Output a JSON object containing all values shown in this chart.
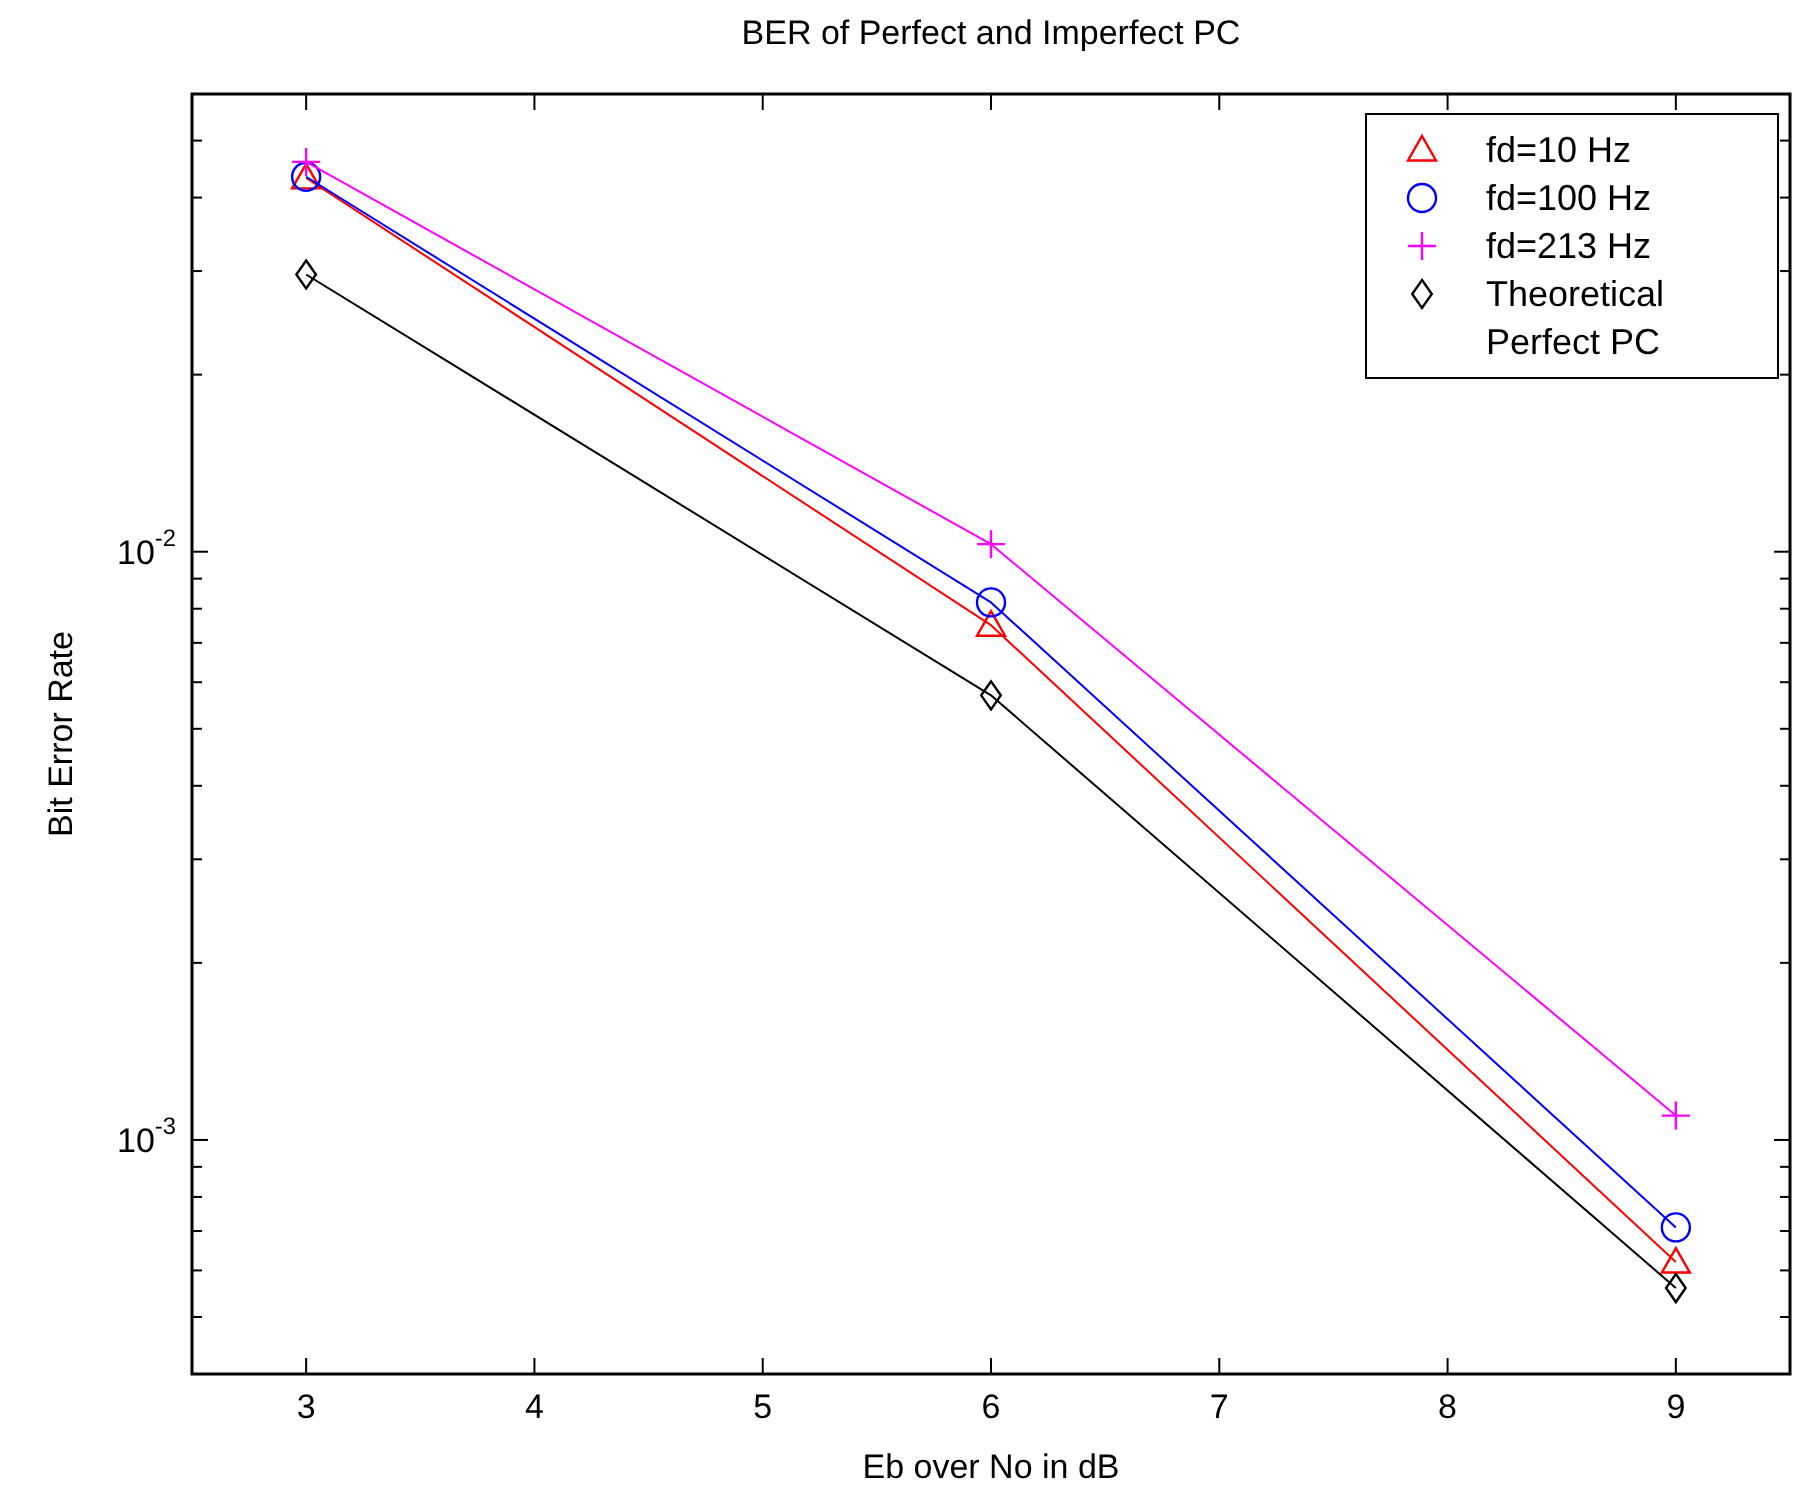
{
  "chart_data": {
    "type": "line",
    "title": "BER of Perfect and Imperfect PC",
    "xlabel": "Eb over No in dB",
    "ylabel": "Bit Error Rate",
    "x": [
      3,
      6,
      9
    ],
    "xlim": [
      2.5,
      9.5
    ],
    "xticks": [
      3,
      4,
      5,
      6,
      7,
      8,
      9
    ],
    "log": "y",
    "ylim": [
      0.0004,
      0.06
    ],
    "yticks": [
      {
        "value": 0.0004,
        "label": null
      },
      {
        "value": 0.0005,
        "label": null
      },
      {
        "value": 0.0006,
        "label": null
      },
      {
        "value": 0.0007,
        "label": null
      },
      {
        "value": 0.0008,
        "label": null
      },
      {
        "value": 0.0009,
        "label": null
      },
      {
        "value": 0.001,
        "label": "10$^{-3}$"
      },
      {
        "value": 0.002,
        "label": null
      },
      {
        "value": 0.003,
        "label": null
      },
      {
        "value": 0.004,
        "label": null
      },
      {
        "value": 0.005,
        "label": null
      },
      {
        "value": 0.006,
        "label": null
      },
      {
        "value": 0.007,
        "label": null
      },
      {
        "value": 0.008,
        "label": null
      },
      {
        "value": 0.009,
        "label": null
      },
      {
        "value": 0.01,
        "label": "10$^{-2}$"
      },
      {
        "value": 0.02,
        "label": null
      },
      {
        "value": 0.03,
        "label": null
      },
      {
        "value": 0.04,
        "label": null
      },
      {
        "value": 0.05,
        "label": null
      },
      {
        "value": 0.06,
        "label": null
      }
    ],
    "grid": false,
    "legend": "top right",
    "line_style": "solid",
    "series": [
      {
        "name": "fd=10 Hz",
        "color": "#ff0000",
        "marker": "triangle",
        "values": [
          0.0432,
          0.0075,
          0.00062
        ]
      },
      {
        "name": "fd=100 Hz",
        "color": "#0000ff",
        "marker": "circle",
        "values": [
          0.0434,
          0.0082,
          0.00071
        ]
      },
      {
        "name": "fd=213 Hz",
        "color": "#ff00ff",
        "marker": "cross",
        "values": [
          0.046,
          0.0103,
          0.0011
        ]
      },
      {
        "name": "Theoretical Perfect PC",
        "color": "#000000",
        "marker": "diamond",
        "values": [
          0.0296,
          0.0057,
          0.00056
        ]
      }
    ]
  }
}
